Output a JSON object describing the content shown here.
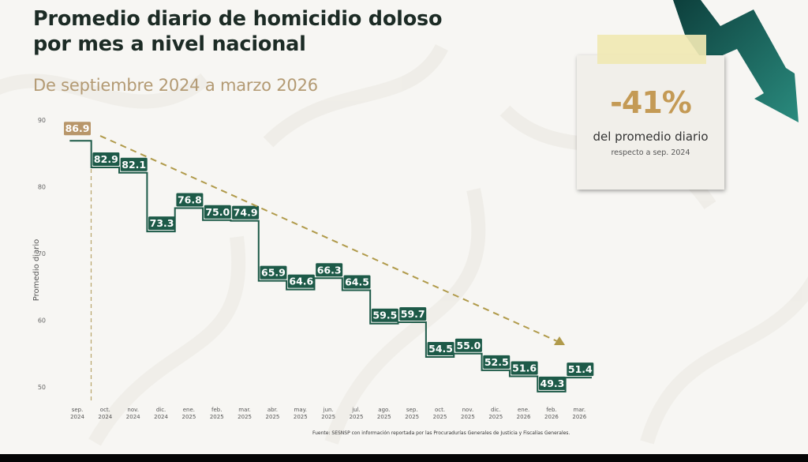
{
  "header": {
    "title_line1": "Promedio diario de homicidio doloso",
    "title_line2": "por mes a nivel nacional",
    "subtitle": "De septiembre 2024 a marzo 2026"
  },
  "callout": {
    "percent": "-41%",
    "line1": "del promedio diario",
    "line2": "respecto a sep. 2024"
  },
  "source": "Fuente: SESNSP con información reportada por las Procuradurías Generales de Justicia y Fiscalías Generales.",
  "colors": {
    "series": "#1d5a48",
    "first_point": "#b8966a",
    "trend": "#b09a4a",
    "arrow_dark": "#0f4a44",
    "arrow_light": "#2a8b7e",
    "accent_percent": "#c49a55"
  },
  "chart_data": {
    "type": "line",
    "subtype": "step",
    "title": "Promedio diario de homicidio doloso por mes a nivel nacional",
    "subtitle": "De septiembre 2024 a marzo 2026",
    "xlabel": "",
    "ylabel": "Promedio diario",
    "ylim": [
      48,
      90
    ],
    "yticks": [
      50,
      60,
      70,
      80,
      90
    ],
    "grid": false,
    "legend": "none",
    "categories": [
      "sep. 2024",
      "oct. 2024",
      "nov. 2024",
      "dic. 2024",
      "ene. 2025",
      "feb. 2025",
      "mar. 2025",
      "abr. 2025",
      "may. 2025",
      "jun. 2025",
      "jul. 2025",
      "ago. 2025",
      "sep. 2025",
      "oct. 2025",
      "nov. 2025",
      "dic. 2025",
      "ene. 2026",
      "feb. 2026",
      "mar. 2026"
    ],
    "x_month": [
      "sep.",
      "oct.",
      "nov.",
      "dic.",
      "ene.",
      "feb.",
      "mar.",
      "abr.",
      "may.",
      "jun.",
      "jul.",
      "ago.",
      "sep.",
      "oct.",
      "nov.",
      "dic.",
      "ene.",
      "feb.",
      "mar."
    ],
    "x_year": [
      "2024",
      "2024",
      "2024",
      "2024",
      "2025",
      "2025",
      "2025",
      "2025",
      "2025",
      "2025",
      "2025",
      "2025",
      "2025",
      "2025",
      "2025",
      "2025",
      "2026",
      "2026",
      "2026"
    ],
    "series": [
      {
        "name": "Promedio diario",
        "values": [
          86.9,
          82.9,
          82.1,
          73.3,
          76.8,
          75.0,
          74.9,
          65.9,
          64.6,
          66.3,
          64.5,
          59.5,
          59.7,
          54.5,
          55.0,
          52.5,
          51.6,
          49.3,
          51.4
        ],
        "labels": [
          "86.9",
          "82.9",
          "82.1",
          "73.3",
          "76.8",
          "75.0",
          "74.9",
          "65.9",
          "64.6",
          "66.3",
          "64.5",
          "59.5",
          "59.7",
          "54.5",
          "55.0",
          "52.5",
          "51.6",
          "49.3",
          "51.4"
        ]
      }
    ],
    "annotations": [
      {
        "type": "trend-arrow",
        "from": "sep. 2024",
        "to": "mar. 2026",
        "style": "dashed"
      },
      {
        "type": "vertical-reference",
        "at": "sep./oct. 2024",
        "style": "dashed"
      },
      {
        "type": "callout",
        "text": "-41% del promedio diario respecto a sep. 2024"
      }
    ]
  }
}
